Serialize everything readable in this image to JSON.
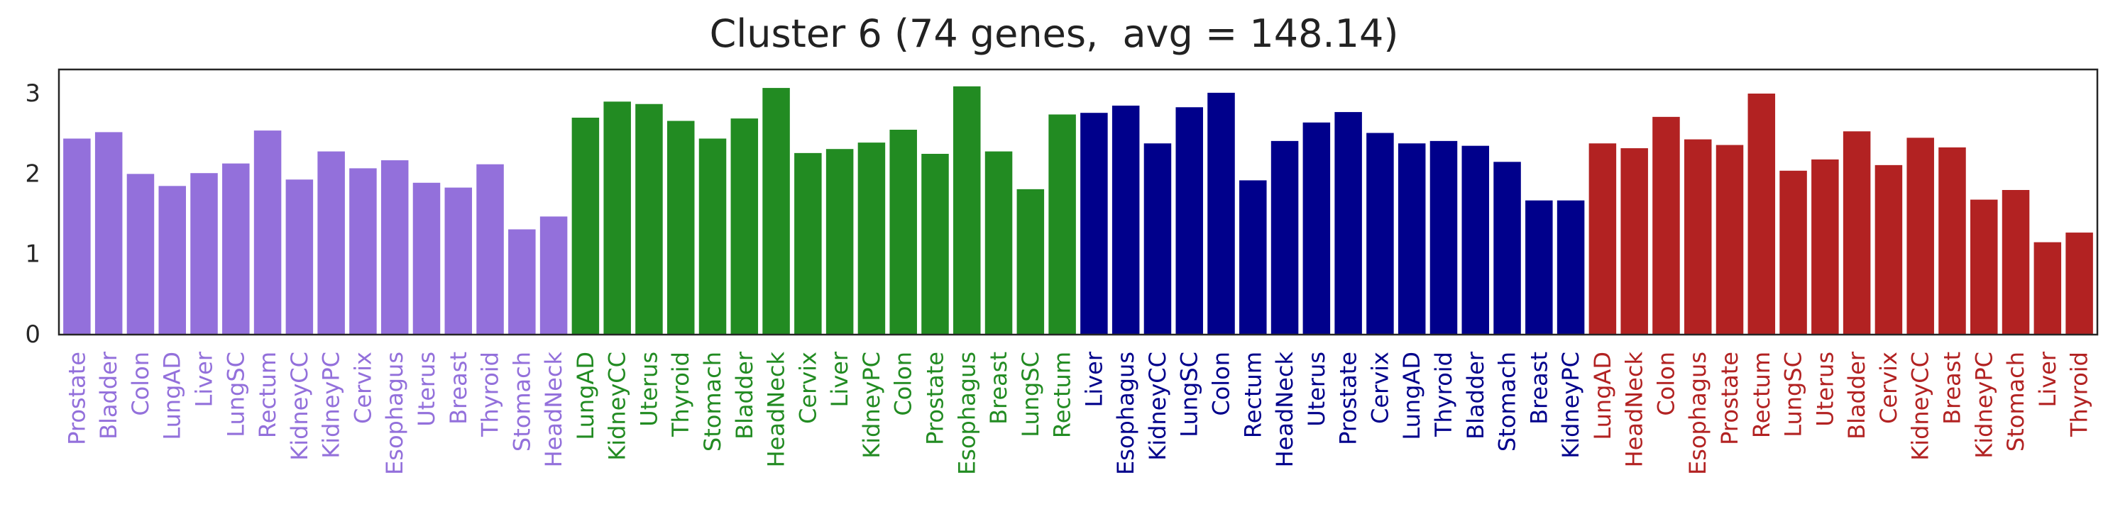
{
  "chart_data": {
    "type": "bar",
    "title": "Cluster 6 (74 genes,  avg = 148.14)",
    "xlabel": "",
    "ylabel": "",
    "ylim": [
      0,
      3.3
    ],
    "yticks": [
      0,
      1,
      2,
      3
    ],
    "grid": false,
    "groups": [
      {
        "color": "#9370DB",
        "categories": [
          "Prostate",
          "Bladder",
          "Colon",
          "LungAD",
          "Liver",
          "LungSC",
          "Rectum",
          "KidneyCC",
          "KidneyPC",
          "Cervix",
          "Esophagus",
          "Uterus",
          "Breast",
          "Thyroid",
          "Stomach",
          "HeadNeck"
        ],
        "values": [
          2.44,
          2.52,
          2.0,
          1.85,
          2.01,
          2.13,
          2.54,
          1.93,
          2.28,
          2.07,
          2.17,
          1.89,
          1.83,
          2.12,
          1.31,
          1.47
        ]
      },
      {
        "color": "#228B22",
        "categories": [
          "LungAD",
          "KidneyCC",
          "Uterus",
          "Thyroid",
          "Stomach",
          "Bladder",
          "HeadNeck",
          "Cervix",
          "Liver",
          "KidneyPC",
          "Colon",
          "Prostate",
          "Esophagus",
          "Breast",
          "LungSC",
          "Rectum"
        ],
        "values": [
          2.7,
          2.9,
          2.87,
          2.66,
          2.44,
          2.69,
          3.07,
          2.26,
          2.31,
          2.39,
          2.55,
          2.25,
          3.09,
          2.28,
          1.81,
          2.74
        ]
      },
      {
        "color": "#00008B",
        "categories": [
          "Liver",
          "Esophagus",
          "KidneyCC",
          "LungSC",
          "Colon",
          "Rectum",
          "HeadNeck",
          "Uterus",
          "Prostate",
          "Cervix",
          "LungAD",
          "Thyroid",
          "Bladder",
          "Stomach",
          "Breast",
          "KidneyPC"
        ],
        "values": [
          2.76,
          2.85,
          2.38,
          2.83,
          3.01,
          1.92,
          2.41,
          2.64,
          2.77,
          2.51,
          2.38,
          2.41,
          2.35,
          2.15,
          1.67,
          1.67
        ]
      },
      {
        "color": "#B22222",
        "categories": [
          "LungAD",
          "HeadNeck",
          "Colon",
          "Esophagus",
          "Prostate",
          "Rectum",
          "LungSC",
          "Uterus",
          "Bladder",
          "Cervix",
          "KidneyCC",
          "Breast",
          "KidneyPC",
          "Stomach",
          "Liver",
          "Thyroid"
        ],
        "values": [
          2.38,
          2.32,
          2.71,
          2.43,
          2.36,
          3.0,
          2.04,
          2.18,
          2.53,
          2.11,
          2.45,
          2.33,
          1.68,
          1.8,
          1.15,
          1.27
        ]
      }
    ]
  }
}
